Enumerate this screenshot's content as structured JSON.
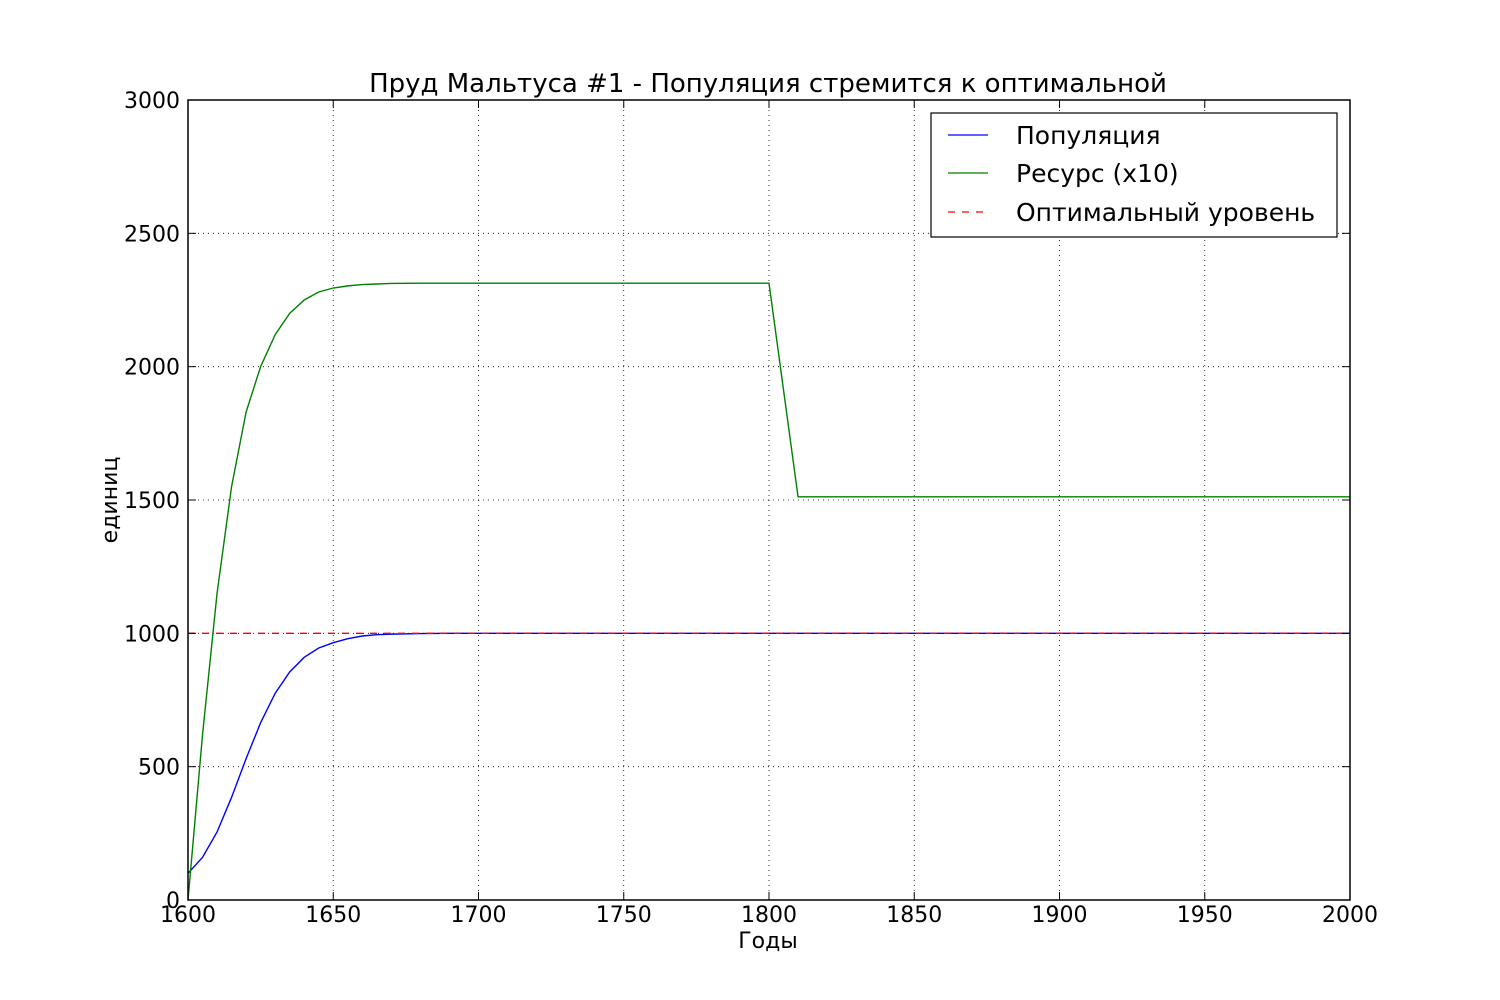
{
  "chart_data": {
    "type": "line",
    "title": "Пруд Мальтуса #1 - Популяция стремится к оптимальной",
    "xlabel": "Годы",
    "ylabel": "единиц",
    "xlim": [
      1600,
      2000
    ],
    "ylim": [
      0,
      3000
    ],
    "xticks": [
      1600,
      1650,
      1700,
      1750,
      1800,
      1850,
      1900,
      1950,
      2000
    ],
    "yticks": [
      0,
      500,
      1000,
      1500,
      2000,
      2500,
      3000
    ],
    "grid": true,
    "legend_position": "top-right",
    "series": [
      {
        "name": "Популяция",
        "color": "#0000ff",
        "style": "solid",
        "x": [
          1600,
          1605,
          1610,
          1615,
          1620,
          1625,
          1630,
          1635,
          1640,
          1645,
          1650,
          1655,
          1660,
          1665,
          1670,
          1680,
          1690,
          1700,
          1750,
          1800,
          1850,
          1900,
          1950,
          2000
        ],
        "y": [
          100,
          160,
          255,
          385,
          530,
          665,
          775,
          855,
          910,
          945,
          965,
          980,
          990,
          995,
          997,
          999,
          1000,
          1000,
          1000,
          1000,
          1000,
          1000,
          1000,
          1000
        ]
      },
      {
        "name": "Ресурс (x10)",
        "color": "#008000",
        "style": "solid",
        "x": [
          1600,
          1605,
          1610,
          1615,
          1620,
          1625,
          1630,
          1635,
          1640,
          1645,
          1650,
          1655,
          1660,
          1665,
          1670,
          1680,
          1690,
          1700,
          1750,
          1800,
          1810,
          1850,
          1900,
          1950,
          2000
        ],
        "y": [
          0,
          620,
          1150,
          1550,
          1830,
          2000,
          2120,
          2200,
          2250,
          2280,
          2295,
          2303,
          2308,
          2310,
          2312,
          2313,
          2313,
          2313,
          2313,
          2313,
          1512,
          1512,
          1512,
          1512,
          1512
        ]
      },
      {
        "name": "Оптимальный уровень",
        "color": "#ff0000",
        "style": "dashed",
        "x": [
          1600,
          2000
        ],
        "y": [
          1000,
          1000
        ]
      }
    ]
  }
}
